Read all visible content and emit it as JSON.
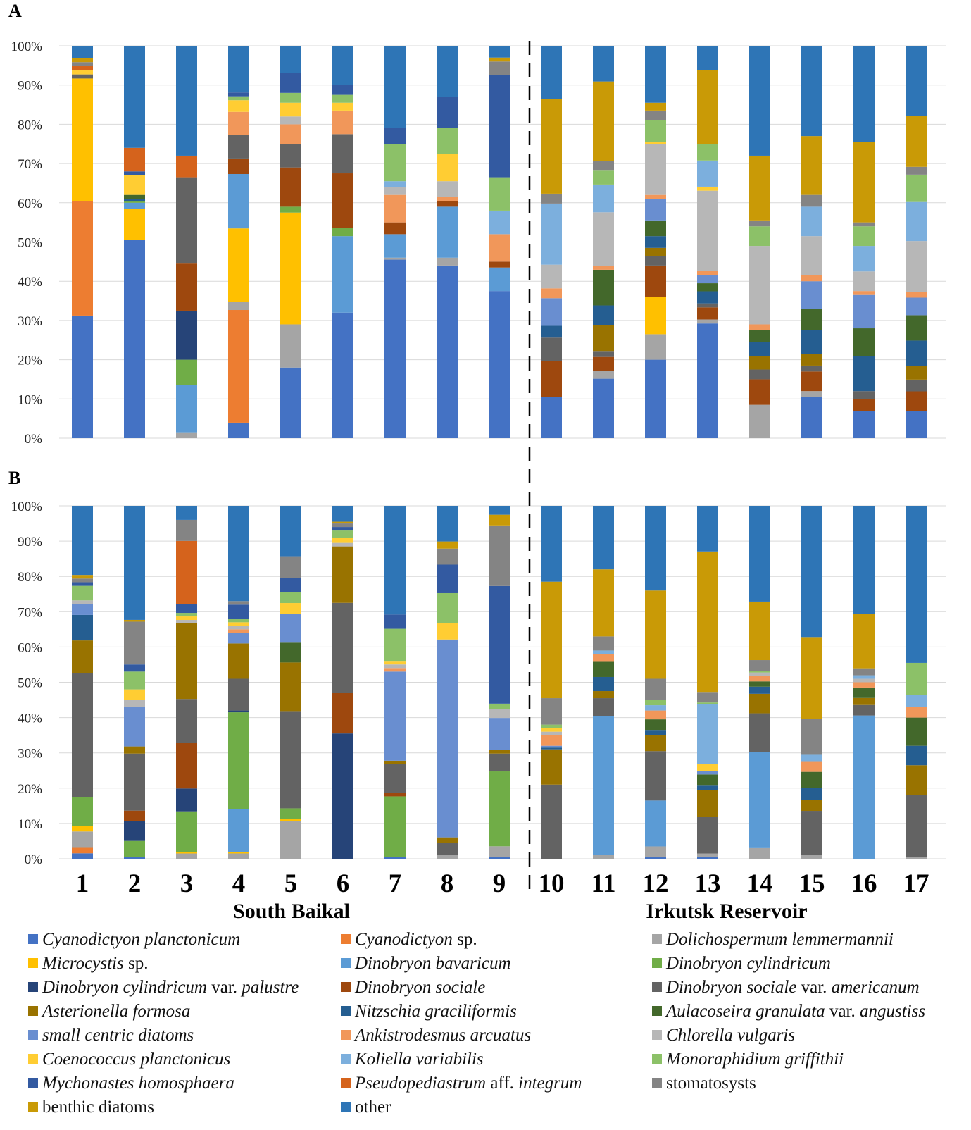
{
  "chart_data": {
    "type": "stacked-bar-100",
    "panels": [
      "A",
      "B"
    ],
    "y_ticks": [
      "0%",
      "10%",
      "20%",
      "30%",
      "40%",
      "50%",
      "60%",
      "70%",
      "80%",
      "90%",
      "100%"
    ],
    "categories": [
      "1",
      "2",
      "3",
      "4",
      "5",
      "6",
      "7",
      "8",
      "9",
      "10",
      "11",
      "12",
      "13",
      "14",
      "15",
      "16",
      "17"
    ],
    "groups": [
      {
        "label": "South Baikal",
        "sites": [
          "1",
          "2",
          "3",
          "4",
          "5",
          "6",
          "7",
          "8",
          "9"
        ]
      },
      {
        "label": "Irkutsk Reservoir",
        "sites": [
          "10",
          "11",
          "12",
          "13",
          "14",
          "15",
          "16",
          "17"
        ]
      }
    ],
    "series": [
      {
        "name": "Cyanodictyon planctonicum",
        "color": "#4472C4",
        "parts": [
          {
            "t": "Cyanodictyon planctonicum",
            "i": true
          }
        ]
      },
      {
        "name": "Cyanodictyon sp.",
        "color": "#ED7D31",
        "parts": [
          {
            "t": "Cyanodictyon",
            "i": true
          },
          {
            "t": " sp.",
            "i": false
          }
        ]
      },
      {
        "name": "Dolichospermum lemmermannii",
        "color": "#A5A5A5",
        "parts": [
          {
            "t": "Dolichospermum lemmermannii",
            "i": true
          }
        ]
      },
      {
        "name": "Microcystis sp.",
        "color": "#FFC000",
        "parts": [
          {
            "t": "Microcystis",
            "i": true
          },
          {
            "t": " sp.",
            "i": false
          }
        ]
      },
      {
        "name": "Dinobryon bavaricum",
        "color": "#5B9BD5",
        "parts": [
          {
            "t": "Dinobryon bavaricum",
            "i": true
          }
        ]
      },
      {
        "name": "Dinobryon cylindricum",
        "color": "#70AD47",
        "parts": [
          {
            "t": "Dinobryon cylindricum",
            "i": true
          }
        ]
      },
      {
        "name": "Dinobryon cylindricum var. palustre",
        "color": "#264478",
        "parts": [
          {
            "t": "Dinobryon cylindricum",
            "i": true
          },
          {
            "t": " var. ",
            "i": false
          },
          {
            "t": "palustre",
            "i": true
          }
        ]
      },
      {
        "name": "Dinobryon sociale",
        "color": "#9E480E",
        "parts": [
          {
            "t": "Dinobryon sociale",
            "i": true
          }
        ]
      },
      {
        "name": "Dinobryon sociale var. americanum",
        "color": "#636363",
        "parts": [
          {
            "t": "Dinobryon sociale",
            "i": true
          },
          {
            "t": " var. ",
            "i": false
          },
          {
            "t": "americanum",
            "i": true
          }
        ]
      },
      {
        "name": "Asterionella formosa",
        "color": "#997300",
        "parts": [
          {
            "t": "Asterionella formosa",
            "i": true
          }
        ]
      },
      {
        "name": "Nitzschia graciliformis",
        "color": "#255E91",
        "parts": [
          {
            "t": "Nitzschia graciliformis",
            "i": true
          }
        ]
      },
      {
        "name": "Aulacoseira granulata var. angustiss",
        "color": "#43682B",
        "parts": [
          {
            "t": "Aulacoseira granulata",
            "i": true
          },
          {
            "t": " var. ",
            "i": false
          },
          {
            "t": "angustiss",
            "i": true
          }
        ]
      },
      {
        "name": "small centric diatoms",
        "color": "#698ED0",
        "parts": [
          {
            "t": "small centric diatoms",
            "i": true
          }
        ]
      },
      {
        "name": "Ankistrodesmus arcuatus",
        "color": "#F1975A",
        "parts": [
          {
            "t": "Ankistrodesmus arcuatus",
            "i": true
          }
        ]
      },
      {
        "name": "Chlorella vulgaris",
        "color": "#B7B7B7",
        "parts": [
          {
            "t": "Chlorella vulgaris",
            "i": true
          }
        ]
      },
      {
        "name": "Coenococcus planctonicus",
        "color": "#FFCD33",
        "parts": [
          {
            "t": "Coenococcus planctonicus",
            "i": true
          }
        ]
      },
      {
        "name": "Koliella variabilis",
        "color": "#7CAFDD",
        "parts": [
          {
            "t": "Koliella variabilis",
            "i": true
          }
        ]
      },
      {
        "name": "Monoraphidium griffithii",
        "color": "#8CC168",
        "parts": [
          {
            "t": "Monoraphidium griffithii",
            "i": true
          }
        ]
      },
      {
        "name": "Mychonastes homosphaera",
        "color": "#335AA1",
        "parts": [
          {
            "t": "Mychonastes homosphaera",
            "i": true
          }
        ]
      },
      {
        "name": "Pseudopediastrum aff. integrum",
        "color": "#D5631C",
        "parts": [
          {
            "t": "Pseudopediastrum",
            "i": true
          },
          {
            "t": " aff. ",
            "i": false
          },
          {
            "t": "integrum",
            "i": true
          }
        ]
      },
      {
        "name": "stomatosysts",
        "color": "#848484",
        "parts": [
          {
            "t": "stomatosysts",
            "i": false
          }
        ]
      },
      {
        "name": "benthic diatoms",
        "color": "#C99A06",
        "parts": [
          {
            "t": "benthic diatoms",
            "i": false
          }
        ]
      },
      {
        "name": "other",
        "color": "#2E75B6",
        "parts": [
          {
            "t": "other",
            "i": false
          }
        ]
      }
    ],
    "panel_A": [
      [
        30,
        28,
        0,
        30,
        0,
        0,
        0,
        0,
        1,
        0,
        0,
        0,
        0,
        0,
        0,
        1,
        0,
        0,
        0,
        1,
        1,
        1,
        3
      ],
      [
        50.5,
        0,
        0,
        8,
        1.5,
        0.5,
        0,
        0,
        0,
        0,
        0.5,
        1,
        0,
        0,
        0,
        5,
        0,
        0,
        1,
        6,
        0,
        0,
        26
      ],
      [
        0,
        0,
        1.5,
        0,
        12,
        6.5,
        12.5,
        12,
        22,
        0,
        0,
        0,
        0,
        0,
        0,
        0,
        0,
        0,
        0,
        5.5,
        0,
        0,
        28
      ],
      [
        4,
        29,
        2,
        19,
        14,
        0,
        0,
        4,
        6,
        0,
        0,
        0,
        0,
        6,
        0,
        3,
        0,
        1,
        1,
        0,
        0,
        0,
        12
      ],
      [
        18,
        0,
        11,
        28.5,
        0,
        1.5,
        0,
        10,
        6,
        0,
        0,
        0,
        0,
        5,
        2,
        3.5,
        0,
        2.5,
        5,
        0,
        0,
        0,
        7
      ],
      [
        32,
        0,
        0,
        0,
        19.5,
        2,
        0,
        14,
        10,
        0,
        0,
        0,
        0,
        6,
        0,
        2,
        0,
        2,
        2.5,
        0,
        0,
        0,
        10
      ],
      [
        45.5,
        0,
        0.5,
        0,
        6,
        0,
        0,
        3,
        0,
        0,
        0,
        0,
        0,
        7,
        2,
        0,
        1.5,
        9.5,
        4,
        0,
        0,
        0,
        21
      ],
      [
        44,
        0,
        2,
        0,
        13,
        0,
        0,
        1.5,
        0,
        0,
        0,
        0,
        0,
        1,
        4,
        7,
        0,
        6.5,
        8,
        0,
        0,
        0,
        13
      ],
      [
        37.5,
        0,
        0,
        0,
        6,
        0,
        0,
        1.5,
        0,
        0,
        0,
        0,
        0,
        7,
        0,
        0,
        6,
        8.5,
        26,
        0,
        3.5,
        1,
        3
      ],
      [
        10.5,
        0,
        0,
        0,
        0,
        0,
        0,
        9,
        6,
        0,
        3,
        0,
        7,
        2.5,
        6,
        0,
        15.5,
        0,
        0,
        0,
        2.5,
        24,
        13.5
      ],
      [
        15,
        0,
        2,
        0,
        0,
        0,
        0,
        3.5,
        1.5,
        6.5,
        5,
        9,
        0,
        1,
        13.5,
        0,
        7,
        3.5,
        0,
        0,
        2.5,
        20,
        9
      ],
      [
        20,
        0,
        6.5,
        9.5,
        0,
        0,
        0,
        8,
        2.5,
        2,
        3,
        4,
        5.5,
        1,
        13,
        0.5,
        0,
        5.5,
        0,
        0,
        2.5,
        2,
        14.5
      ],
      [
        28.5,
        0,
        1,
        0,
        0,
        0,
        0,
        3,
        1,
        0,
        3,
        2,
        2,
        1,
        20,
        1,
        6.5,
        4,
        0,
        0,
        0,
        18.5,
        6
      ],
      [
        0,
        0,
        8.5,
        0,
        0,
        0,
        0,
        6.5,
        2.5,
        3.5,
        3.5,
        3,
        0,
        1.5,
        20,
        0,
        0,
        5,
        0,
        0,
        1.5,
        16.5,
        28
      ],
      [
        10.5,
        0,
        1.5,
        0,
        0,
        0,
        0,
        5,
        1.5,
        3,
        6,
        5.5,
        7,
        1.5,
        10,
        0,
        7.5,
        0,
        0,
        0,
        3,
        15,
        23
      ],
      [
        7,
        0,
        0,
        0,
        0,
        0,
        0,
        3,
        2,
        0,
        9,
        7,
        8.5,
        1,
        5,
        0,
        6.5,
        5,
        0,
        0,
        1,
        20.5,
        24.5
      ],
      [
        7,
        0,
        0,
        0,
        0,
        0,
        0,
        5,
        3,
        3.5,
        6.5,
        6.5,
        4.5,
        1.5,
        13,
        0,
        10,
        7,
        0,
        0,
        2,
        13,
        18
      ]
    ],
    "panel_B": [
      [
        1.5,
        1.5,
        4.5,
        1.5,
        0,
        8,
        0,
        0,
        34,
        9,
        7,
        0,
        3,
        0,
        1,
        0,
        0,
        4,
        1,
        0,
        1,
        1,
        19
      ],
      [
        0.5,
        0,
        0,
        0,
        0,
        4.5,
        5.5,
        3,
        16,
        2,
        0,
        0,
        11,
        0,
        2,
        3,
        0,
        5,
        2,
        0,
        12,
        0.5,
        32
      ],
      [
        0,
        0,
        1.5,
        0.5,
        0,
        11.5,
        6.5,
        13,
        12.5,
        21.5,
        0,
        0,
        0,
        0,
        1,
        1,
        0,
        1,
        2.5,
        18,
        6,
        0,
        4
      ],
      [
        0,
        0,
        1.5,
        0.5,
        12,
        27.5,
        0.5,
        0,
        9,
        10,
        0,
        0,
        3,
        1,
        1,
        1,
        0,
        1,
        4,
        0,
        1,
        0,
        27
      ],
      [
        0,
        0,
        10.5,
        0.5,
        0,
        3,
        0,
        0,
        27,
        13.5,
        0,
        5.5,
        8,
        0,
        0,
        3,
        0,
        3,
        4,
        0,
        6,
        0,
        14
      ],
      [
        0,
        0,
        0,
        0,
        0,
        0,
        35.5,
        11.5,
        25.5,
        16,
        0,
        0,
        0,
        0,
        1,
        1.5,
        0,
        2,
        1,
        0,
        1,
        0.5,
        4.5
      ],
      [
        0.5,
        0,
        0,
        0,
        0,
        17,
        0,
        1,
        8,
        1,
        0,
        0,
        25,
        1,
        1,
        1,
        0,
        9,
        4,
        0,
        0,
        0,
        30.5
      ],
      [
        0,
        0,
        1,
        0,
        0,
        0,
        0,
        0,
        3.5,
        1.5,
        0,
        0,
        55.5,
        0,
        0,
        4.5,
        0,
        8.5,
        8,
        0,
        4.5,
        2,
        10
      ],
      [
        0.5,
        0,
        3,
        0,
        0,
        21,
        0,
        0,
        5,
        1,
        0,
        0,
        9,
        0,
        2.5,
        0,
        0,
        1.5,
        33,
        0,
        17,
        3,
        2.5
      ],
      [
        0,
        0,
        0,
        0,
        0,
        0,
        0,
        0,
        21,
        10,
        0.5,
        0,
        0.5,
        3,
        1,
        1,
        0,
        1,
        0,
        0,
        7.5,
        33,
        21.5
      ],
      [
        0,
        0,
        1,
        0,
        39.5,
        0,
        0,
        0,
        5,
        2,
        4,
        4.5,
        0,
        2,
        0,
        0,
        1,
        0,
        0,
        0,
        4,
        19,
        18
      ],
      [
        0.5,
        0,
        3,
        0,
        13,
        0,
        0,
        0,
        14,
        4.5,
        1.5,
        3,
        0,
        2.5,
        0,
        0,
        1.5,
        1.5,
        0,
        0,
        6,
        25,
        24
      ],
      [
        0.5,
        0,
        1,
        0,
        0,
        0,
        0,
        0,
        10.5,
        7.5,
        1.5,
        3,
        1,
        0,
        0,
        2,
        17,
        0.5,
        0,
        0,
        3,
        40,
        13
      ],
      [
        0,
        0,
        3,
        0,
        27,
        0,
        0,
        0,
        11,
        5.5,
        2,
        1.5,
        0,
        1.5,
        1,
        0,
        0,
        0.5,
        0,
        0,
        3,
        16.5,
        27
      ],
      [
        0,
        0,
        1,
        0,
        0,
        0,
        0,
        0,
        12.5,
        3,
        3.5,
        4.5,
        0,
        3,
        0,
        0,
        2,
        0,
        0,
        0,
        10,
        23,
        37
      ],
      [
        0,
        0,
        0,
        0,
        41,
        0,
        0,
        0,
        3,
        2,
        0,
        3,
        0,
        1.5,
        1,
        0,
        1,
        0,
        0,
        0,
        2,
        15.5,
        31
      ],
      [
        0,
        0,
        0.5,
        0,
        0,
        0,
        0,
        0,
        17.5,
        8.5,
        5.5,
        8,
        0,
        3,
        0,
        0,
        3.5,
        9,
        0,
        0,
        0,
        0,
        44.5
      ]
    ]
  }
}
